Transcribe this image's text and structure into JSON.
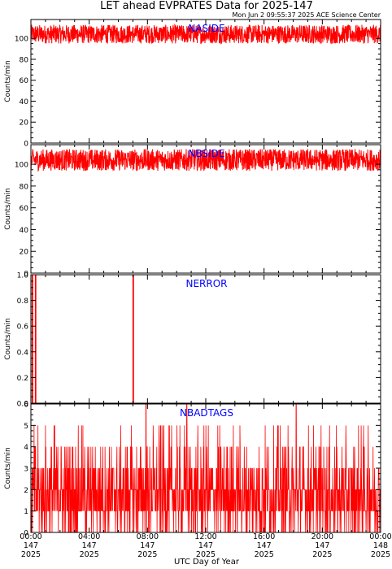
{
  "title": "LET ahead EVPRATES Data for 2025-147",
  "timestamp": "Mon Jun  2 09:55:37 2025 ACE Science Center",
  "xlabel": "UTC Day of Year",
  "colors": {
    "line": "#ff0000",
    "label": "#0000ff",
    "axis": "#000000"
  },
  "x_ticks": [
    {
      "time": "00:00",
      "day": "147",
      "year": "2025",
      "hour": 0
    },
    {
      "time": "04:00",
      "day": "147",
      "year": "2025",
      "hour": 4
    },
    {
      "time": "08:00",
      "day": "147",
      "year": "2025",
      "hour": 8
    },
    {
      "time": "12:00",
      "day": "147",
      "year": "2025",
      "hour": 12
    },
    {
      "time": "16:00",
      "day": "147",
      "year": "2025",
      "hour": 16
    },
    {
      "time": "20:00",
      "day": "147",
      "year": "2025",
      "hour": 20
    },
    {
      "time": "00:00",
      "day": "148",
      "year": "2025",
      "hour": 24
    }
  ],
  "chart_data": [
    {
      "type": "line",
      "name": "NASIDE",
      "ylabel": "Counts/min",
      "ylim": [
        0,
        118
      ],
      "yticks": [
        0,
        20,
        40,
        60,
        80,
        100
      ],
      "xlim": [
        0,
        24
      ],
      "description": "Noisy series around 104 counts/min, range ~95-113, one sample per minute for the whole day",
      "baseline": 104,
      "spread": [
        95,
        113
      ]
    },
    {
      "type": "line",
      "name": "NBSIDE",
      "ylabel": "Counts/min",
      "ylim": [
        0,
        118
      ],
      "yticks": [
        0,
        20,
        40,
        60,
        80,
        100
      ],
      "xlim": [
        0,
        24
      ],
      "description": "Noisy series around 104 counts/min, range ~94-114",
      "baseline": 104,
      "spread": [
        94,
        114
      ]
    },
    {
      "type": "line",
      "name": "NERROR",
      "ylabel": "Counts/min",
      "ylim": [
        0,
        1
      ],
      "yticks": [
        0.0,
        0.2,
        0.4,
        0.6,
        0.8,
        1.0
      ],
      "ytick_labels": [
        "0.0",
        "0.2",
        "0.4",
        "0.6",
        "0.8",
        "1.0"
      ],
      "xlim": [
        0,
        24
      ],
      "spikes": [
        {
          "x": 0.08,
          "y": 1
        },
        {
          "x": 0.3,
          "y": 1
        },
        {
          "x": 7.0,
          "y": 1
        }
      ]
    },
    {
      "type": "line",
      "name": "NBADTAGS",
      "ylabel": "Counts/min",
      "ylim": [
        0,
        6
      ],
      "yticks": [
        0,
        1,
        2,
        3,
        4,
        5,
        6
      ],
      "xlim": [
        0,
        24
      ],
      "description": "Integer counts fluctuating mostly between 0 and 3 with occasional values of 4-6",
      "max_spikes": [
        {
          "x": 7.9,
          "y": 6
        },
        {
          "x": 10.7,
          "y": 6
        },
        {
          "x": 18.2,
          "y": 6
        }
      ]
    }
  ]
}
